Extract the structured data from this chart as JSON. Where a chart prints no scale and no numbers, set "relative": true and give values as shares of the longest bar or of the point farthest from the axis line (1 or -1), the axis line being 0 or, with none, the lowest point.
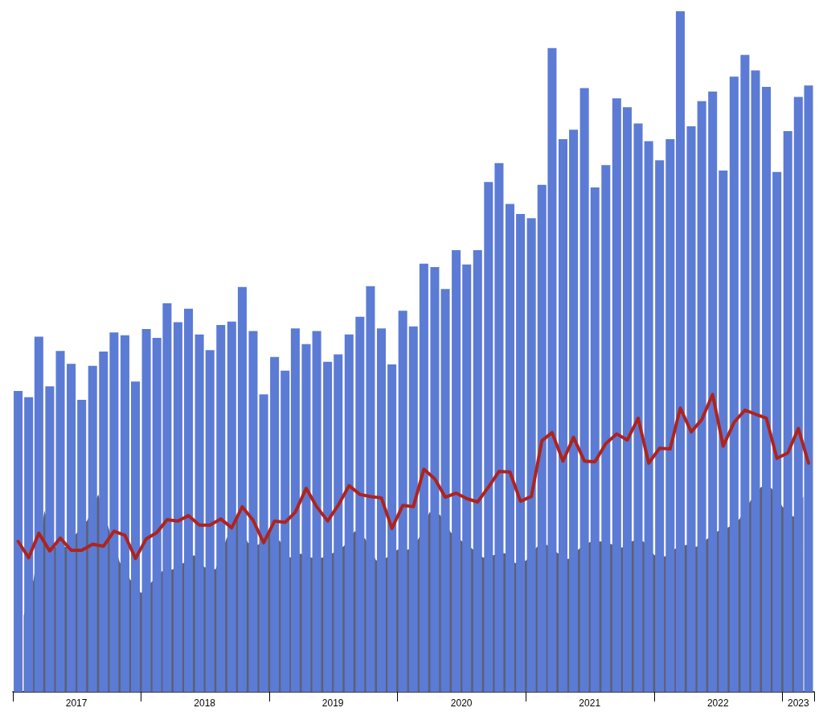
{
  "chart_data": {
    "type": "bar",
    "relative": true,
    "x": [
      "2017-01-16",
      "2017-02-15",
      "2017-03-16",
      "2017-04-16",
      "2017-05-16",
      "2017-06-16",
      "2017-07-16",
      "2017-08-16",
      "2017-09-16",
      "2017-10-16",
      "2017-11-16",
      "2017-12-16",
      "2018-01-16",
      "2018-02-15",
      "2018-03-16",
      "2018-04-16",
      "2018-05-16",
      "2018-06-16",
      "2018-07-16",
      "2018-08-16",
      "2018-09-16",
      "2018-10-16",
      "2018-11-16",
      "2018-12-16",
      "2019-01-16",
      "2019-02-15",
      "2019-03-16",
      "2019-04-16",
      "2019-05-16",
      "2019-06-16",
      "2019-07-16",
      "2019-08-16",
      "2019-09-16",
      "2019-10-16",
      "2019-11-16",
      "2019-12-16",
      "2020-01-16",
      "2020-02-15",
      "2020-03-16",
      "2020-04-16",
      "2020-05-16",
      "2020-06-16",
      "2020-07-16",
      "2020-08-16",
      "2020-09-16",
      "2020-10-16",
      "2020-11-16",
      "2020-12-16",
      "2021-01-16",
      "2021-02-15",
      "2021-03-16",
      "2021-04-16",
      "2021-05-16",
      "2021-06-16",
      "2021-07-16",
      "2021-08-16",
      "2021-09-16",
      "2021-10-16",
      "2021-11-16",
      "2021-12-16",
      "2022-01-16",
      "2022-02-15",
      "2022-03-16",
      "2022-04-16",
      "2022-05-16",
      "2022-06-16",
      "2022-07-16",
      "2022-08-16",
      "2022-09-16",
      "2022-10-16",
      "2022-11-16",
      "2022-12-16",
      "2023-01-16",
      "2023-02-15",
      "2023-03-16"
    ],
    "xlim": [
      "2017-01-01",
      "2023-04-01"
    ],
    "xticks": [
      {
        "value": "2017-01-01",
        "label": null
      },
      {
        "value": "2017-07-01",
        "label": "2017"
      },
      {
        "value": "2018-01-01",
        "label": null
      },
      {
        "value": "2018-07-01",
        "label": "2018"
      },
      {
        "value": "2019-01-01",
        "label": null
      },
      {
        "value": "2019-07-01",
        "label": "2019"
      },
      {
        "value": "2020-01-01",
        "label": null
      },
      {
        "value": "2020-07-01",
        "label": "2020"
      },
      {
        "value": "2021-01-01",
        "label": null
      },
      {
        "value": "2021-07-01",
        "label": "2021"
      },
      {
        "value": "2022-01-01",
        "label": null
      },
      {
        "value": "2022-07-01",
        "label": "2022"
      },
      {
        "value": "2023-01-01",
        "label": null
      },
      {
        "value": "2023-02-15",
        "label": "2023"
      },
      {
        "value": "2023-04-01",
        "label": null
      }
    ],
    "series": [
      {
        "type": "area",
        "color": "#5c6070",
        "x": [
          "2017-02-01",
          "2017-03-01",
          "2017-04-01",
          "2017-05-01",
          "2017-06-01",
          "2017-07-01",
          "2017-08-01",
          "2017-09-01",
          "2017-10-01",
          "2017-11-01",
          "2017-12-01",
          "2018-01-01",
          "2018-02-01",
          "2018-03-01",
          "2018-04-01",
          "2018-05-01",
          "2018-06-01",
          "2018-07-01",
          "2018-08-01",
          "2018-09-01",
          "2018-10-01",
          "2018-11-01",
          "2018-12-01",
          "2019-01-01",
          "2019-02-01",
          "2019-03-01",
          "2019-04-01",
          "2019-05-01",
          "2019-06-01",
          "2019-07-01",
          "2019-08-01",
          "2019-09-01",
          "2019-10-01",
          "2019-11-01",
          "2019-12-01",
          "2020-01-01",
          "2020-02-01",
          "2020-03-01",
          "2020-04-01",
          "2020-05-01",
          "2020-06-01",
          "2020-07-01",
          "2020-08-01",
          "2020-09-01",
          "2020-10-01",
          "2020-11-01",
          "2020-12-01",
          "2021-01-01",
          "2021-02-01",
          "2021-03-01",
          "2021-04-01",
          "2021-05-01",
          "2021-06-01",
          "2021-07-01",
          "2021-08-01",
          "2021-09-01",
          "2021-10-01",
          "2021-11-01",
          "2021-12-01",
          "2022-01-01",
          "2022-02-01",
          "2022-03-01",
          "2022-04-01",
          "2022-05-01",
          "2022-06-01",
          "2022-07-01",
          "2022-08-01",
          "2022-09-01",
          "2022-10-01",
          "2022-11-01",
          "2022-12-01",
          "2023-01-01",
          "2023-02-01",
          "2023-03-01"
        ],
        "values": [
          0.112,
          0.165,
          0.266,
          0.213,
          0.213,
          0.233,
          0.252,
          0.29,
          0.24,
          0.191,
          0.165,
          0.145,
          0.162,
          0.177,
          0.18,
          0.189,
          0.201,
          0.183,
          0.18,
          0.225,
          0.26,
          0.219,
          0.216,
          0.236,
          0.221,
          0.197,
          0.203,
          0.197,
          0.197,
          0.204,
          0.214,
          0.236,
          0.225,
          0.193,
          0.197,
          0.209,
          0.209,
          0.225,
          0.264,
          0.26,
          0.234,
          0.222,
          0.21,
          0.197,
          0.201,
          0.204,
          0.189,
          0.193,
          0.213,
          0.216,
          0.204,
          0.195,
          0.21,
          0.22,
          0.221,
          0.217,
          0.212,
          0.222,
          0.221,
          0.201,
          0.199,
          0.21,
          0.216,
          0.213,
          0.225,
          0.236,
          0.242,
          0.254,
          0.28,
          0.301,
          0.299,
          0.272,
          0.257,
          0.287
        ]
      },
      {
        "color": "#5b7bd5",
        "values": [
          0.442,
          0.433,
          0.522,
          0.449,
          0.501,
          0.482,
          0.429,
          0.479,
          0.5,
          0.528,
          0.524,
          0.456,
          0.533,
          0.52,
          0.571,
          0.543,
          0.563,
          0.525,
          0.502,
          0.539,
          0.544,
          0.595,
          0.53,
          0.437,
          0.492,
          0.472,
          0.534,
          0.511,
          0.53,
          0.485,
          0.496,
          0.525,
          0.551,
          0.596,
          0.534,
          0.481,
          0.56,
          0.537,
          0.629,
          0.624,
          0.592,
          0.649,
          0.628,
          0.649,
          0.749,
          0.777,
          0.717,
          0.702,
          0.696,
          0.745,
          0.946,
          0.812,
          0.826,
          0.887,
          0.741,
          0.774,
          0.872,
          0.859,
          0.835,
          0.809,
          0.781,
          0.812,
          1.0,
          0.831,
          0.868,
          0.882,
          0.766,
          0.904,
          0.936,
          0.913,
          0.889,
          0.764,
          0.824,
          0.874,
          0.891
        ]
      },
      {
        "type": "line",
        "color": "#b0231b",
        "values": [
          0.221,
          0.197,
          0.233,
          0.207,
          0.226,
          0.208,
          0.208,
          0.217,
          0.214,
          0.236,
          0.23,
          0.196,
          0.225,
          0.234,
          0.253,
          0.251,
          0.259,
          0.245,
          0.245,
          0.254,
          0.241,
          0.272,
          0.252,
          0.219,
          0.251,
          0.249,
          0.264,
          0.299,
          0.272,
          0.251,
          0.274,
          0.303,
          0.29,
          0.287,
          0.285,
          0.24,
          0.274,
          0.272,
          0.327,
          0.313,
          0.286,
          0.292,
          0.284,
          0.279,
          0.301,
          0.324,
          0.323,
          0.28,
          0.287,
          0.369,
          0.381,
          0.339,
          0.374,
          0.339,
          0.338,
          0.365,
          0.379,
          0.37,
          0.402,
          0.336,
          0.358,
          0.357,
          0.417,
          0.382,
          0.4,
          0.437,
          0.361,
          0.396,
          0.414,
          0.408,
          0.402,
          0.343,
          0.351,
          0.387,
          0.336
        ]
      }
    ]
  }
}
